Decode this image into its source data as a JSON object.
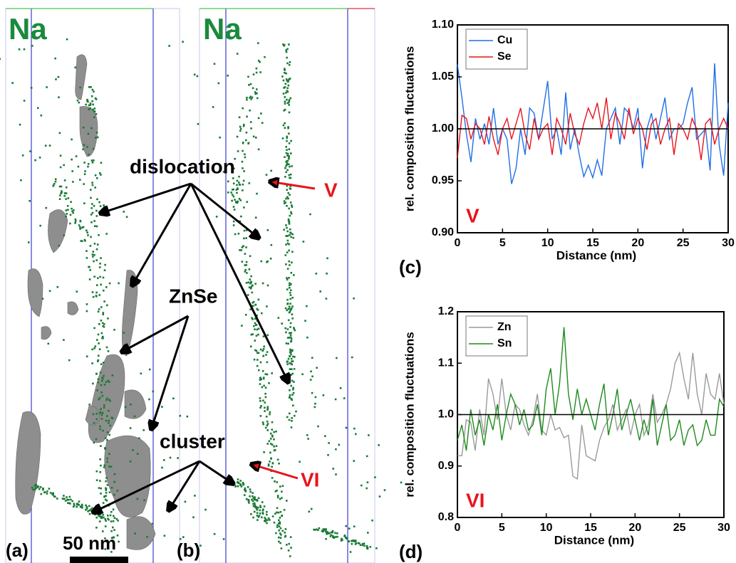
{
  "atom_maps": {
    "panels": [
      {
        "label": "(a)",
        "element": "Na"
      },
      {
        "label": "(b)",
        "element": "Na"
      }
    ],
    "annotations": {
      "dislocation": "dislocation",
      "znse": "ZnSe",
      "cluster": "cluster",
      "v": "V",
      "vi": "VI"
    },
    "scale_bar": "50 nm"
  },
  "chart_data": [
    {
      "type": "line",
      "panel_label": "(c)",
      "annotation": "V",
      "x_label": "Distance (nm)",
      "y_label": "rel. composition fluctuations",
      "x": [
        0,
        0.5,
        1,
        1.5,
        2,
        2.5,
        3,
        3.5,
        4,
        4.5,
        5,
        5.5,
        6,
        6.5,
        7,
        7.5,
        8,
        8.5,
        9,
        9.5,
        10,
        10.5,
        11,
        11.5,
        12,
        12.5,
        13,
        13.5,
        14,
        14.5,
        15,
        15.5,
        16,
        16.5,
        17,
        17.5,
        18,
        18.5,
        19,
        19.5,
        20,
        20.5,
        21,
        21.5,
        22,
        22.5,
        23,
        23.5,
        24,
        24.5,
        25,
        25.5,
        26,
        26.5,
        27,
        27.5,
        28,
        28.5,
        29,
        29.5,
        30
      ],
      "series": [
        {
          "name": "Cu",
          "color": "#1f6fe6",
          "values": [
            1.062,
            1.03,
            0.995,
            0.968,
            1.01,
            0.99,
            1.005,
            0.985,
            1.02,
            0.985,
            1.0,
            0.99,
            0.947,
            0.962,
            1.0,
            0.975,
            1.02,
            1.015,
            0.99,
            1.018,
            1.046,
            0.99,
            1.0,
            0.975,
            1.035,
            0.98,
            1.0,
            0.975,
            0.954,
            0.965,
            0.953,
            0.97,
            0.955,
            1.0,
            1.01,
            1.02,
            0.985,
            1.02,
            1.015,
            1.0,
            1.02,
            0.962,
            1.0,
            1.015,
            0.99,
            1.01,
            1.03,
            0.99,
            1.0,
            1.0,
            1.005,
            1.025,
            1.04,
            0.99,
            0.995,
            1.0,
            0.96,
            1.063,
            0.985,
            0.955,
            1.025
          ]
        },
        {
          "name": "Se",
          "color": "#e8141c",
          "values": [
            0.972,
            1.013,
            1.01,
            0.99,
            1.005,
            1.0,
            0.985,
            1.012,
            0.99,
            0.975,
            1.0,
            1.01,
            0.99,
            1.005,
            1.02,
            0.995,
            0.98,
            1.01,
            0.99,
            1.0,
            1.005,
            0.975,
            1.01,
            1.0,
            0.985,
            1.015,
            0.995,
            0.985,
            1.005,
            1.02,
            1.01,
            1.025,
            1.0,
            1.03,
            0.99,
            1.015,
            1.005,
            0.99,
            1.02,
            0.995,
            1.01,
            1.0,
            0.98,
            1.005,
            1.01,
            0.985,
            1.0,
            1.01,
            0.975,
            1.005,
            1.0,
            0.99,
            1.01,
            1.0,
            0.97,
            1.005,
            1.01,
            0.985,
            1.0,
            1.01,
            1.0
          ]
        }
      ],
      "xlim": [
        0,
        30
      ],
      "xticks": [
        0,
        5,
        10,
        15,
        20,
        25,
        30
      ],
      "ylim": [
        0.9,
        1.1
      ],
      "yticks": [
        {
          "value": 0.9,
          "label": "0.90"
        },
        0.95,
        {
          "value": 1.0,
          "label": "1.00"
        },
        1.05,
        {
          "value": 1.1,
          "label": "1.10"
        }
      ],
      "reference_line": 1.0,
      "legend": "upper left",
      "grid": false
    },
    {
      "type": "line",
      "panel_label": "(d)",
      "annotation": "VI",
      "x_label": "Distance (nm)",
      "y_label": "rel. composition fluctuations",
      "x": [
        0,
        0.5,
        1,
        1.5,
        2,
        2.5,
        3,
        3.5,
        4,
        4.5,
        5,
        5.5,
        6,
        6.5,
        7,
        7.5,
        8,
        8.5,
        9,
        9.5,
        10,
        10.5,
        11,
        11.5,
        12,
        12.5,
        13,
        13.5,
        14,
        14.5,
        15,
        15.5,
        16,
        16.5,
        17,
        17.5,
        18,
        18.5,
        19,
        19.5,
        20,
        20.5,
        21,
        21.5,
        22,
        22.5,
        23,
        23.5,
        24,
        24.5,
        25,
        25.5,
        26,
        26.5,
        27,
        27.5,
        28,
        28.5,
        29,
        29.5,
        30
      ],
      "series": [
        {
          "name": "Zn",
          "color": "#9a9a9a",
          "values": [
            0.92,
            0.92,
            0.99,
            0.985,
            0.93,
            1.01,
            0.96,
            1.07,
            1.04,
            0.99,
            1.07,
            1.0,
            0.97,
            1.02,
            1.01,
            0.98,
            0.96,
            0.99,
            1.04,
            0.97,
            0.96,
            1.0,
            0.97,
            0.975,
            0.955,
            0.96,
            0.88,
            0.875,
            0.98,
            0.92,
            0.915,
            0.91,
            0.95,
            0.975,
            0.99,
            1.02,
            0.97,
            0.99,
            1.01,
            0.96,
            1.0,
            1.02,
            0.96,
            0.98,
            1.04,
            0.985,
            1.0,
            1.02,
            1.05,
            1.1,
            1.12,
            1.07,
            1.03,
            1.12,
            1.04,
            1.0,
            1.08,
            1.04,
            1.03,
            1.08,
            1.02
          ]
        },
        {
          "name": "Sn",
          "color": "#1e8a1e",
          "values": [
            0.95,
            0.98,
            0.93,
            1.01,
            0.96,
            0.99,
            0.94,
            1.0,
            0.97,
            1.02,
            0.95,
            1.0,
            1.04,
            1.02,
            0.98,
            1.01,
            0.97,
            0.98,
            1.02,
            0.96,
            1.05,
            1.09,
            1.0,
            1.06,
            1.17,
            1.04,
            0.99,
            1.05,
            1.0,
            1.03,
            1.0,
            0.97,
            1.02,
            1.06,
            0.96,
            1.0,
            1.05,
            0.97,
            1.0,
            1.03,
            0.99,
            0.95,
            0.99,
            0.96,
            1.03,
            0.94,
            0.98,
            1.02,
            0.95,
            0.96,
            0.99,
            0.94,
            0.97,
            0.98,
            0.94,
            0.95,
            0.99,
            0.96,
            0.96,
            1.03,
            1.015
          ]
        }
      ],
      "xlim": [
        0,
        30
      ],
      "xticks": [
        0,
        5,
        10,
        15,
        20,
        25,
        30
      ],
      "ylim": [
        0.8,
        1.2
      ],
      "yticks": [
        0.8,
        0.9,
        {
          "value": 1.0,
          "label": "1.0"
        },
        1.1,
        1.2
      ],
      "reference_line": 1.0,
      "legend": "upper left",
      "grid": false
    }
  ]
}
